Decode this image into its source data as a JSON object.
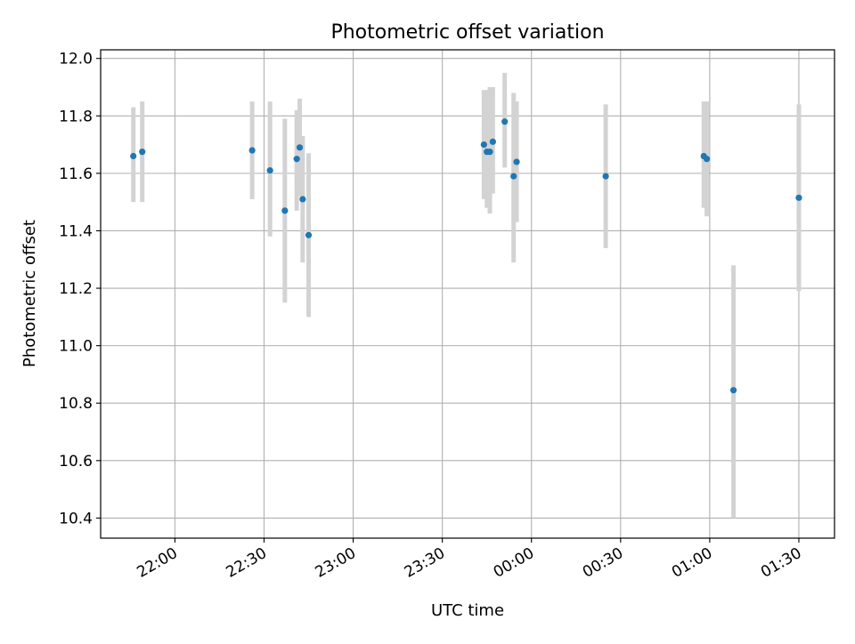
{
  "chart_data": {
    "type": "scatter",
    "title": "Photometric offset variation",
    "xlabel": "UTC time",
    "ylabel": "Photometric offset",
    "grid": true,
    "legend": "none",
    "xlim_minutes_from_21h": [
      35,
      282
    ],
    "x_tick_labels": [
      "22:00",
      "22:30",
      "23:00",
      "23:30",
      "00:00",
      "00:30",
      "01:00",
      "01:30"
    ],
    "y_tick_labels": [
      "10.4",
      "10.6",
      "10.8",
      "11.0",
      "11.2",
      "11.4",
      "11.6",
      "11.8",
      "12.0"
    ],
    "ylim": [
      10.33,
      12.03
    ],
    "colors": {
      "point": "#1f77b4",
      "errorbar": "#d3d3d3",
      "grid": "#b0b0b0"
    },
    "series": [
      {
        "points": [
          {
            "time": "21:46",
            "y": 11.66,
            "y_low": 11.5,
            "y_high": 11.83
          },
          {
            "time": "21:49",
            "y": 11.675,
            "y_low": 11.5,
            "y_high": 11.85
          },
          {
            "time": "22:26",
            "y": 11.68,
            "y_low": 11.51,
            "y_high": 11.85
          },
          {
            "time": "22:32",
            "y": 11.61,
            "y_low": 11.38,
            "y_high": 11.85
          },
          {
            "time": "22:37",
            "y": 11.47,
            "y_low": 11.15,
            "y_high": 11.79
          },
          {
            "time": "22:41",
            "y": 11.65,
            "y_low": 11.47,
            "y_high": 11.82
          },
          {
            "time": "22:42",
            "y": 11.69,
            "y_low": 11.52,
            "y_high": 11.86
          },
          {
            "time": "22:43",
            "y": 11.51,
            "y_low": 11.29,
            "y_high": 11.73
          },
          {
            "time": "22:45",
            "y": 11.385,
            "y_low": 11.1,
            "y_high": 11.67
          },
          {
            "time": "23:44",
            "y": 11.7,
            "y_low": 11.51,
            "y_high": 11.89
          },
          {
            "time": "23:45",
            "y": 11.675,
            "y_low": 11.48,
            "y_high": 11.89
          },
          {
            "time": "23:46",
            "y": 11.675,
            "y_low": 11.46,
            "y_high": 11.9
          },
          {
            "time": "23:47",
            "y": 11.71,
            "y_low": 11.53,
            "y_high": 11.9
          },
          {
            "time": "23:51",
            "y": 11.78,
            "y_low": 11.62,
            "y_high": 11.95
          },
          {
            "time": "23:54",
            "y": 11.59,
            "y_low": 11.29,
            "y_high": 11.88
          },
          {
            "time": "23:55",
            "y": 11.64,
            "y_low": 11.43,
            "y_high": 11.85
          },
          {
            "time": "00:25",
            "y": 11.59,
            "y_low": 11.34,
            "y_high": 11.84
          },
          {
            "time": "00:58",
            "y": 11.66,
            "y_low": 11.48,
            "y_high": 11.85
          },
          {
            "time": "00:59",
            "y": 11.65,
            "y_low": 11.45,
            "y_high": 11.85
          },
          {
            "time": "01:08",
            "y": 10.845,
            "y_low": 10.4,
            "y_high": 11.28
          },
          {
            "time": "01:30",
            "y": 11.515,
            "y_low": 11.19,
            "y_high": 11.84
          }
        ]
      }
    ]
  }
}
